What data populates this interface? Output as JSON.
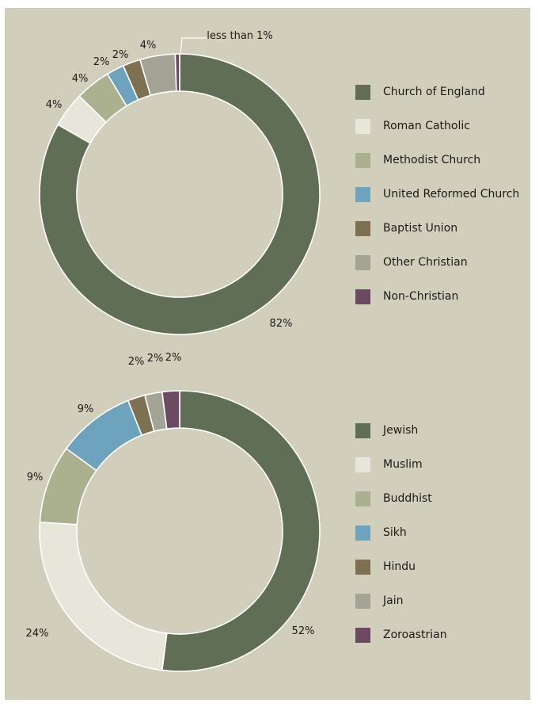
{
  "chart_data": [
    {
      "type": "pie",
      "categories": [
        "Church of England",
        "Roman Catholic",
        "Methodist Church",
        "United Reformed Church",
        "Baptist Union",
        "Other Christian",
        "Non-Christian"
      ],
      "values": [
        82,
        4,
        4,
        2,
        2,
        4,
        0.5
      ],
      "value_labels": [
        "82%",
        "4%",
        "4%",
        "2%",
        "2%",
        "4%",
        "less than 1%"
      ],
      "colors": [
        "#5f6e55",
        "#e8e6da",
        "#abb18e",
        "#6ea3bd",
        "#7d7151",
        "#a3a495",
        "#6b4a62"
      ],
      "legend_position": "right"
    },
    {
      "type": "pie",
      "categories": [
        "Jewish",
        "Muslim",
        "Buddhist",
        "Sikh",
        "Hindu",
        "Jain",
        "Zoroastrian"
      ],
      "values": [
        52,
        24,
        9,
        9,
        2,
        2,
        2
      ],
      "value_labels": [
        "52%",
        "24%",
        "9%",
        "9%",
        "2%",
        "2%",
        "2%"
      ],
      "colors": [
        "#5f6e55",
        "#e8e6da",
        "#abb18e",
        "#6ea3bd",
        "#7d7151",
        "#a3a495",
        "#6b4a62"
      ],
      "legend_position": "right"
    }
  ]
}
